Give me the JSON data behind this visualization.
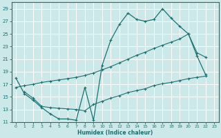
{
  "xlabel": "Humidex (Indice chaleur)",
  "bg_color": "#cde8e8",
  "line_color": "#1a7070",
  "grid_color": "#ffffff",
  "x_min": -0.5,
  "x_max": 23.5,
  "y_min": 11,
  "y_max": 30,
  "yticks": [
    11,
    13,
    15,
    17,
    19,
    21,
    23,
    25,
    27,
    29
  ],
  "xticks": [
    0,
    1,
    2,
    3,
    4,
    5,
    6,
    7,
    8,
    9,
    10,
    11,
    12,
    13,
    14,
    15,
    16,
    17,
    18,
    19,
    20,
    21,
    22,
    23
  ],
  "line1_x": [
    0,
    1,
    2,
    3,
    4,
    5,
    6,
    7,
    8,
    9,
    10,
    11,
    12,
    13,
    14,
    15,
    16,
    17,
    18,
    19,
    20,
    21,
    22
  ],
  "line1_y": [
    18.0,
    15.5,
    14.5,
    13.3,
    12.3,
    11.5,
    11.5,
    11.3,
    16.5,
    11.3,
    20.0,
    24.0,
    26.5,
    28.3,
    27.3,
    27.0,
    27.3,
    29.0,
    27.5,
    26.2,
    25.0,
    21.5,
    18.5
  ],
  "line2_x": [
    0,
    1,
    2,
    3,
    4,
    5,
    6,
    7,
    8,
    9,
    10,
    11,
    12,
    13,
    14,
    15,
    16,
    17,
    18,
    19,
    20,
    21,
    22
  ],
  "line2_y": [
    16.5,
    16.8,
    17.0,
    17.3,
    17.5,
    17.7,
    17.9,
    18.1,
    18.4,
    18.8,
    19.3,
    19.8,
    20.4,
    21.0,
    21.6,
    22.1,
    22.7,
    23.2,
    23.7,
    24.2,
    25.0,
    22.0,
    21.3
  ],
  "line3_x": [
    1,
    2,
    3,
    4,
    5,
    6,
    7,
    8,
    9,
    10,
    11,
    12,
    13,
    14,
    15,
    16,
    17,
    18,
    19,
    20,
    21,
    22
  ],
  "line3_y": [
    15.8,
    14.8,
    13.5,
    13.3,
    13.2,
    13.1,
    13.0,
    12.8,
    13.8,
    14.3,
    14.8,
    15.2,
    15.7,
    16.0,
    16.3,
    16.8,
    17.1,
    17.3,
    17.6,
    17.9,
    18.1,
    18.3
  ]
}
